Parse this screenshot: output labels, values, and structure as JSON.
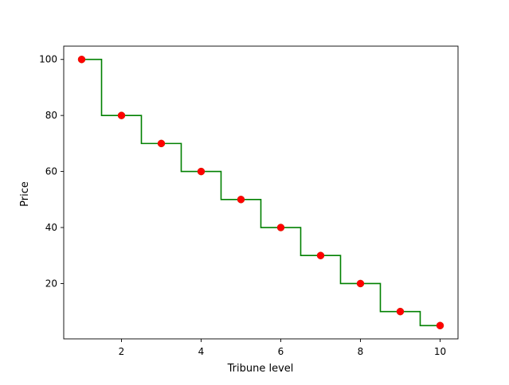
{
  "chart_data": {
    "type": "line",
    "title": "",
    "xlabel": "Tribune level",
    "ylabel": "Price",
    "xlim": [
      0.55,
      10.45
    ],
    "ylim": [
      0.25,
      104.75
    ],
    "xticks": [
      2,
      4,
      6,
      8,
      10
    ],
    "yticks": [
      20,
      40,
      60,
      80,
      100
    ],
    "grid": false,
    "series": [
      {
        "style": "step-mid",
        "color": "#008000",
        "x": [
          1,
          2,
          3,
          4,
          5,
          6,
          7,
          8,
          9,
          10
        ],
        "values": [
          100,
          80,
          70,
          60,
          50,
          40,
          30,
          20,
          10,
          5
        ]
      },
      {
        "style": "markers",
        "color": "#ff0000",
        "x": [
          1,
          2,
          3,
          4,
          5,
          6,
          7,
          8,
          9,
          10
        ],
        "values": [
          100,
          80,
          70,
          60,
          50,
          40,
          30,
          20,
          10,
          5
        ]
      }
    ]
  }
}
